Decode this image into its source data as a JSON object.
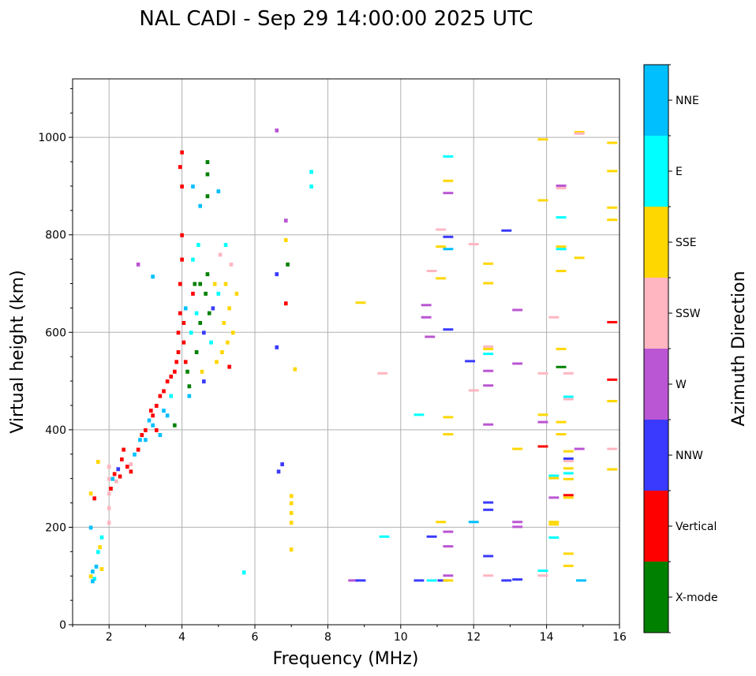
{
  "chart_data": {
    "type": "scatter",
    "title": "NAL CADI - Sep 29 14:00:00 2025 UTC",
    "xlabel": "Frequency (MHz)",
    "ylabel": "Virtual height (km)",
    "xlim": [
      1,
      16
    ],
    "ylim": [
      0,
      1120
    ],
    "xticks": [
      2,
      4,
      6,
      8,
      10,
      12,
      14,
      16
    ],
    "yticks": [
      0,
      200,
      400,
      600,
      800,
      1000
    ],
    "grid": true,
    "colorbar": {
      "label": "Azimuth Direction",
      "categories": [
        "X-mode",
        "Vertical",
        "NNW",
        "W",
        "SSW",
        "SSE",
        "E",
        "NNE"
      ],
      "colors": [
        "#008000",
        "#ff0000",
        "#3a3aff",
        "#ba55d3",
        "#ffb6c1",
        "#ffd700",
        "#00ffff",
        "#00bfff"
      ]
    },
    "points_format": [
      "frequency_mhz",
      "height_km",
      "category_index"
    ],
    "points": [
      [
        1.5,
        100,
        5
      ],
      [
        1.55,
        110,
        7
      ],
      [
        1.6,
        95,
        6
      ],
      [
        1.65,
        120,
        7
      ],
      [
        1.7,
        150,
        6
      ],
      [
        1.75,
        160,
        5
      ],
      [
        1.8,
        180,
        6
      ],
      [
        1.6,
        260,
        1
      ],
      [
        1.5,
        270,
        5
      ],
      [
        1.5,
        200,
        7
      ],
      [
        1.7,
        335,
        5
      ],
      [
        1.8,
        115,
        5
      ],
      [
        1.55,
        90,
        7
      ],
      [
        2.0,
        210,
        4
      ],
      [
        2.0,
        240,
        4
      ],
      [
        2.0,
        270,
        4
      ],
      [
        2.0,
        300,
        4
      ],
      [
        2.0,
        325,
        4
      ],
      [
        2.05,
        280,
        1
      ],
      [
        2.1,
        300,
        7
      ],
      [
        2.15,
        310,
        1
      ],
      [
        2.2,
        295,
        4
      ],
      [
        2.25,
        320,
        2
      ],
      [
        2.3,
        305,
        1
      ],
      [
        2.35,
        340,
        1
      ],
      [
        2.4,
        360,
        1
      ],
      [
        2.5,
        325,
        1
      ],
      [
        2.6,
        330,
        4
      ],
      [
        2.6,
        315,
        1
      ],
      [
        2.7,
        350,
        7
      ],
      [
        2.8,
        360,
        1
      ],
      [
        2.85,
        380,
        7
      ],
      [
        2.9,
        390,
        1
      ],
      [
        3.0,
        400,
        1
      ],
      [
        3.0,
        380,
        7
      ],
      [
        3.1,
        420,
        7
      ],
      [
        3.15,
        440,
        1
      ],
      [
        3.2,
        430,
        1
      ],
      [
        3.2,
        410,
        7
      ],
      [
        3.3,
        450,
        1
      ],
      [
        3.3,
        400,
        1
      ],
      [
        3.4,
        470,
        1
      ],
      [
        3.4,
        390,
        7
      ],
      [
        3.5,
        480,
        1
      ],
      [
        3.5,
        440,
        7
      ],
      [
        3.6,
        500,
        1
      ],
      [
        3.6,
        430,
        7
      ],
      [
        3.7,
        510,
        1
      ],
      [
        3.7,
        470,
        6
      ],
      [
        3.8,
        520,
        1
      ],
      [
        3.8,
        410,
        0
      ],
      [
        3.85,
        540,
        1
      ],
      [
        3.9,
        560,
        1
      ],
      [
        3.9,
        600,
        1
      ],
      [
        3.95,
        640,
        1
      ],
      [
        3.95,
        700,
        1
      ],
      [
        4.0,
        750,
        1
      ],
      [
        4.0,
        800,
        1
      ],
      [
        4.0,
        900,
        1
      ],
      [
        4.0,
        970,
        1
      ],
      [
        3.95,
        940,
        1
      ],
      [
        4.05,
        620,
        1
      ],
      [
        4.05,
        580,
        1
      ],
      [
        4.1,
        650,
        7
      ],
      [
        4.1,
        540,
        1
      ],
      [
        4.15,
        520,
        0
      ],
      [
        4.2,
        490,
        0
      ],
      [
        4.2,
        470,
        7
      ],
      [
        4.25,
        600,
        6
      ],
      [
        4.3,
        680,
        1
      ],
      [
        4.3,
        750,
        6
      ],
      [
        4.35,
        700,
        0
      ],
      [
        4.4,
        560,
        0
      ],
      [
        4.4,
        640,
        6
      ],
      [
        4.45,
        780,
        6
      ],
      [
        4.5,
        620,
        0
      ],
      [
        4.5,
        700,
        0
      ],
      [
        4.55,
        520,
        5
      ],
      [
        4.6,
        600,
        2
      ],
      [
        4.65,
        680,
        0
      ],
      [
        4.7,
        720,
        0
      ],
      [
        4.7,
        950,
        0
      ],
      [
        4.7,
        925,
        0
      ],
      [
        4.7,
        880,
        0
      ],
      [
        4.75,
        640,
        0
      ],
      [
        4.8,
        580,
        6
      ],
      [
        4.85,
        650,
        2
      ],
      [
        4.9,
        700,
        5
      ],
      [
        4.95,
        540,
        5
      ],
      [
        5.0,
        680,
        6
      ],
      [
        5.05,
        760,
        4
      ],
      [
        5.1,
        560,
        5
      ],
      [
        5.15,
        620,
        5
      ],
      [
        5.2,
        700,
        5
      ],
      [
        5.25,
        580,
        5
      ],
      [
        5.3,
        650,
        5
      ],
      [
        5.35,
        740,
        4
      ],
      [
        5.4,
        600,
        5
      ],
      [
        5.2,
        780,
        6
      ],
      [
        5.5,
        680,
        5
      ],
      [
        5.3,
        530,
        1
      ],
      [
        3.2,
        715,
        7
      ],
      [
        2.8,
        740,
        3
      ],
      [
        4.5,
        860,
        7
      ],
      [
        4.3,
        900,
        7
      ],
      [
        5.0,
        890,
        7
      ],
      [
        4.6,
        500,
        2
      ],
      [
        6.6,
        1015,
        3
      ],
      [
        6.6,
        720,
        2
      ],
      [
        6.6,
        570,
        2
      ],
      [
        6.65,
        315,
        2
      ],
      [
        6.75,
        330,
        2
      ],
      [
        6.85,
        830,
        3
      ],
      [
        6.85,
        790,
        5
      ],
      [
        6.9,
        740,
        0
      ],
      [
        6.85,
        660,
        1
      ],
      [
        7.0,
        265,
        5
      ],
      [
        7.0,
        250,
        5
      ],
      [
        7.0,
        230,
        5
      ],
      [
        7.0,
        210,
        5
      ],
      [
        7.0,
        155,
        5
      ],
      [
        7.1,
        525,
        5
      ],
      [
        7.55,
        930,
        6
      ],
      [
        7.55,
        900,
        6
      ],
      [
        8.9,
        660,
        5
      ],
      [
        9.5,
        515,
        4
      ],
      [
        9.55,
        180,
        6
      ],
      [
        5.7,
        108,
        6
      ],
      [
        8.7,
        90,
        3
      ],
      [
        8.9,
        90,
        2
      ],
      [
        10.5,
        430,
        6
      ],
      [
        10.5,
        90,
        2
      ],
      [
        10.7,
        655,
        3
      ],
      [
        10.7,
        630,
        3
      ],
      [
        10.8,
        590,
        3
      ],
      [
        10.85,
        725,
        4
      ],
      [
        10.85,
        180,
        2
      ],
      [
        10.85,
        90,
        6
      ],
      [
        11.1,
        810,
        4
      ],
      [
        11.1,
        775,
        5
      ],
      [
        11.1,
        710,
        5
      ],
      [
        11.1,
        210,
        5
      ],
      [
        11.15,
        90,
        2
      ],
      [
        11.3,
        960,
        6
      ],
      [
        11.3,
        910,
        5
      ],
      [
        11.3,
        885,
        3
      ],
      [
        11.3,
        795,
        2
      ],
      [
        11.3,
        770,
        7
      ],
      [
        11.3,
        605,
        2
      ],
      [
        11.3,
        425,
        5
      ],
      [
        11.3,
        390,
        5
      ],
      [
        11.3,
        190,
        3
      ],
      [
        11.3,
        160,
        3
      ],
      [
        11.3,
        100,
        3
      ],
      [
        11.3,
        90,
        5
      ],
      [
        11.9,
        540,
        2
      ],
      [
        12.0,
        780,
        4
      ],
      [
        12.0,
        480,
        4
      ],
      [
        12.0,
        210,
        7
      ],
      [
        12.4,
        740,
        5
      ],
      [
        12.4,
        700,
        5
      ],
      [
        12.4,
        570,
        4
      ],
      [
        12.4,
        565,
        5
      ],
      [
        12.4,
        555,
        6
      ],
      [
        12.4,
        520,
        3
      ],
      [
        12.4,
        490,
        3
      ],
      [
        12.4,
        410,
        3
      ],
      [
        12.4,
        250,
        2
      ],
      [
        12.4,
        235,
        2
      ],
      [
        12.4,
        140,
        2
      ],
      [
        12.4,
        100,
        4
      ],
      [
        12.9,
        90,
        2
      ],
      [
        12.9,
        808,
        2
      ],
      [
        13.2,
        645,
        3
      ],
      [
        13.2,
        535,
        3
      ],
      [
        13.2,
        360,
        5
      ],
      [
        13.2,
        210,
        3
      ],
      [
        13.2,
        200,
        3
      ],
      [
        13.2,
        92,
        2
      ],
      [
        13.9,
        995,
        5
      ],
      [
        13.9,
        870,
        5
      ],
      [
        13.9,
        515,
        4
      ],
      [
        13.9,
        430,
        5
      ],
      [
        13.9,
        415,
        3
      ],
      [
        13.9,
        365,
        1
      ],
      [
        13.9,
        110,
        6
      ],
      [
        13.9,
        100,
        4
      ],
      [
        14.2,
        630,
        4
      ],
      [
        14.2,
        305,
        6
      ],
      [
        14.2,
        300,
        5
      ],
      [
        14.2,
        260,
        3
      ],
      [
        14.2,
        210,
        5
      ],
      [
        14.2,
        205,
        5
      ],
      [
        14.2,
        178,
        6
      ],
      [
        14.4,
        900,
        3
      ],
      [
        14.4,
        895,
        4
      ],
      [
        14.4,
        835,
        6
      ],
      [
        14.4,
        775,
        5
      ],
      [
        14.4,
        770,
        6
      ],
      [
        14.4,
        725,
        5
      ],
      [
        14.4,
        565,
        5
      ],
      [
        14.4,
        528,
        0
      ],
      [
        14.4,
        415,
        5
      ],
      [
        14.4,
        390,
        5
      ],
      [
        14.6,
        515,
        4
      ],
      [
        14.6,
        467,
        6
      ],
      [
        14.6,
        462,
        4
      ],
      [
        14.6,
        355,
        5
      ],
      [
        14.6,
        340,
        2
      ],
      [
        14.6,
        335,
        4
      ],
      [
        14.6,
        320,
        5
      ],
      [
        14.6,
        310,
        6
      ],
      [
        14.6,
        298,
        5
      ],
      [
        14.6,
        265,
        1
      ],
      [
        14.6,
        260,
        5
      ],
      [
        14.6,
        145,
        5
      ],
      [
        14.6,
        120,
        5
      ],
      [
        14.9,
        1010,
        5
      ],
      [
        14.9,
        1007,
        4
      ],
      [
        14.9,
        752,
        5
      ],
      [
        14.9,
        360,
        3
      ],
      [
        14.95,
        90,
        7
      ],
      [
        15.8,
        988,
        5
      ],
      [
        15.8,
        930,
        5
      ],
      [
        15.8,
        855,
        5
      ],
      [
        15.8,
        830,
        5
      ],
      [
        15.8,
        620,
        1
      ],
      [
        15.8,
        502,
        1
      ],
      [
        15.8,
        458,
        5
      ],
      [
        15.8,
        360,
        4
      ],
      [
        15.8,
        318,
        5
      ]
    ]
  }
}
